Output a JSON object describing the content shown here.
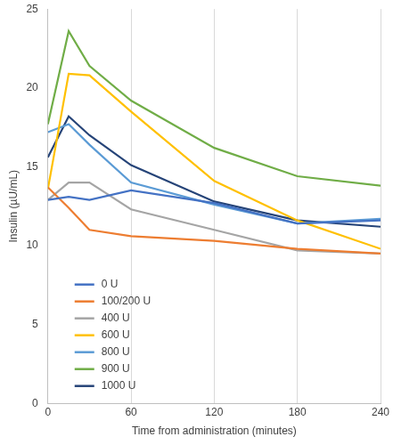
{
  "chart_data": {
    "type": "line",
    "x_label": "Time from administration (minutes)",
    "y_label": "Insulin (µU/mL)",
    "x": [
      0,
      15,
      30,
      60,
      120,
      180,
      240
    ],
    "series": [
      {
        "name": "0 U",
        "color": "#4472c4",
        "values": [
          12.9,
          13.1,
          12.9,
          13.5,
          12.7,
          11.4,
          11.6
        ]
      },
      {
        "name": "100/200 U",
        "color": "#ed7d31",
        "values": [
          13.7,
          12.4,
          11.0,
          10.6,
          10.3,
          9.8,
          9.5
        ]
      },
      {
        "name": "400 U",
        "color": "#a5a5a5",
        "values": [
          12.9,
          14.0,
          14.0,
          12.3,
          11.0,
          9.7,
          9.5
        ]
      },
      {
        "name": "600 U",
        "color": "#ffc000",
        "values": [
          13.6,
          20.9,
          20.8,
          18.5,
          14.1,
          11.6,
          9.8
        ]
      },
      {
        "name": "800 U",
        "color": "#5b9bd5",
        "values": [
          17.2,
          17.7,
          16.4,
          14.0,
          12.6,
          11.4,
          11.7
        ]
      },
      {
        "name": "900 U",
        "color": "#70ad47",
        "values": [
          17.7,
          23.6,
          21.4,
          19.2,
          16.2,
          14.4,
          13.8
        ]
      },
      {
        "name": "1000 U",
        "color": "#264478",
        "values": [
          15.6,
          18.2,
          17.0,
          15.1,
          12.8,
          11.6,
          11.2
        ]
      }
    ],
    "xlim": [
      0,
      240
    ],
    "xticks": [
      0,
      60,
      120,
      180,
      240
    ],
    "ylim": [
      0,
      25
    ],
    "yticks": [
      0,
      5,
      10,
      15,
      20,
      25
    ],
    "grid": "x",
    "legend": "lower left"
  }
}
